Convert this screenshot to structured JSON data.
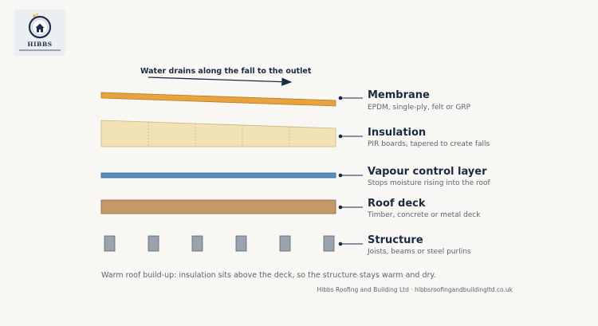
{
  "logo": {
    "brand": "HIBBS",
    "icon": "house-icon"
  },
  "flow_label": "Water drains along the fall to the outlet",
  "layers": [
    {
      "key": "membrane",
      "name": "Membrane",
      "description": "EPDM, single-ply, felt or GRP",
      "color": "#e8a33e"
    },
    {
      "key": "insulation",
      "name": "Insulation",
      "description": "PIR boards, tapered to create falls",
      "color": "#f2e3b6"
    },
    {
      "key": "vapour",
      "name": "Vapour control layer",
      "description": "Stops moisture rising into the roof",
      "color": "#5a8cc4"
    },
    {
      "key": "deck",
      "name": "Roof deck",
      "description": "Timber, concrete or metal deck",
      "color": "#c49a6a"
    },
    {
      "key": "structure",
      "name": "Structure",
      "description": "Joists, beams or steel purlins",
      "color": "#9aa3ae"
    }
  ],
  "caption": "Warm roof build-up: insulation sits above the deck, so the structure stays warm and dry.",
  "credit": "Hibbs Roofing and Building Ltd · hibbsroofingandbuildingltd.co.uk"
}
